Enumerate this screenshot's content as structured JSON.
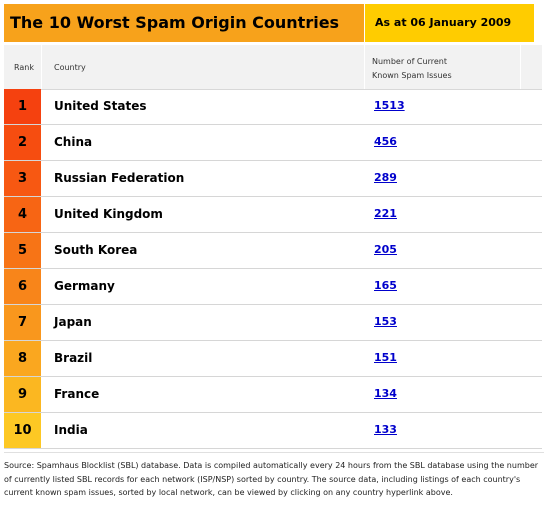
{
  "header": {
    "title": "The 10 Worst Spam Origin Countries",
    "date": "As at 06 January 2009",
    "title_bg": "#f7a21b",
    "date_bg": "#ffcc00"
  },
  "columns": {
    "rank": "Rank",
    "country": "Country",
    "count_line1": "Number of Current",
    "count_line2": "Known Spam Issues"
  },
  "rows": [
    {
      "rank": "1",
      "country": "United States",
      "count": "1513",
      "color": "#f5410f"
    },
    {
      "rank": "2",
      "country": "China",
      "count": "456",
      "color": "#f64d10"
    },
    {
      "rank": "3",
      "country": "Russian Federation",
      "count": "289",
      "color": "#f75812"
    },
    {
      "rank": "4",
      "country": "United Kingdom",
      "count": "221",
      "color": "#f76514"
    },
    {
      "rank": "5",
      "country": "South Korea",
      "count": "205",
      "color": "#f77416"
    },
    {
      "rank": "6",
      "country": "Germany",
      "count": "165",
      "color": "#f8851a"
    },
    {
      "rank": "7",
      "country": "Japan",
      "count": "153",
      "color": "#f9971d"
    },
    {
      "rank": "8",
      "country": "Brazil",
      "count": "151",
      "color": "#faa71f"
    },
    {
      "rank": "9",
      "country": "France",
      "count": "134",
      "color": "#fbb721"
    },
    {
      "rank": "10",
      "country": "India",
      "count": "133",
      "color": "#fdc824"
    }
  ],
  "source": "Source: Spamhaus Blocklist (SBL) database. Data is compiled automatically every 24 hours from the SBL database using the number of currently listed SBL records for each network (ISP/NSP) sorted by country. The source data, including listings of each country's current known spam issues, sorted by local network, can be viewed by clicking on any country hyperlink above."
}
